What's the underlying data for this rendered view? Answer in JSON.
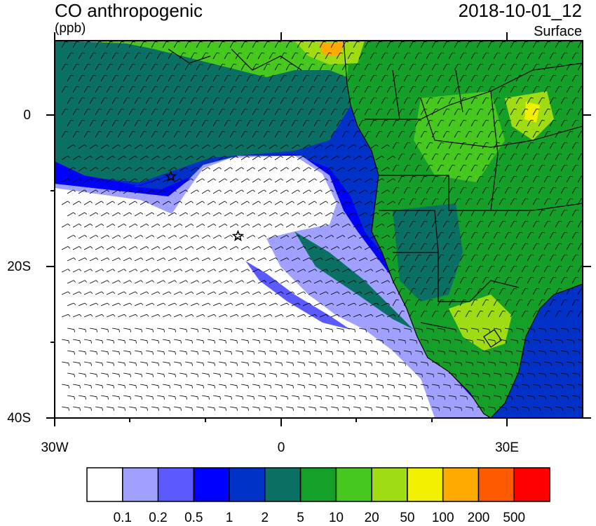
{
  "header": {
    "variable": "CO anthropogenic",
    "units": "(ppb)",
    "datetime": "2018-10-01_12",
    "level": "Surface"
  },
  "axes": {
    "lat_labels": [
      "0",
      "20S",
      "40S"
    ],
    "lon_labels": [
      "30W",
      "0",
      "30E"
    ],
    "lon_range": [
      -30,
      40
    ],
    "lat_range": [
      -40,
      10
    ]
  },
  "markers": [
    {
      "name": "star-marker-1",
      "lon": -14.6,
      "lat": -8.0
    },
    {
      "name": "star-marker-2",
      "lon": -5.7,
      "lat": -15.9
    }
  ],
  "colorbar": {
    "levels": [
      "0.1",
      "0.2",
      "0.5",
      "1",
      "2",
      "5",
      "10",
      "20",
      "50",
      "100",
      "200",
      "500"
    ],
    "colors": [
      "#ffffff",
      "#a0a0ff",
      "#5a5aff",
      "#0000ff",
      "#0032c8",
      "#0a7064",
      "#14a028",
      "#46c81e",
      "#a0dc14",
      "#f0f000",
      "#ffaa00",
      "#ff5a00",
      "#ff0000"
    ]
  },
  "palette": {
    "ocean_clean": "#ffffff",
    "wind_barb": "#000000",
    "borders": "#000000"
  }
}
